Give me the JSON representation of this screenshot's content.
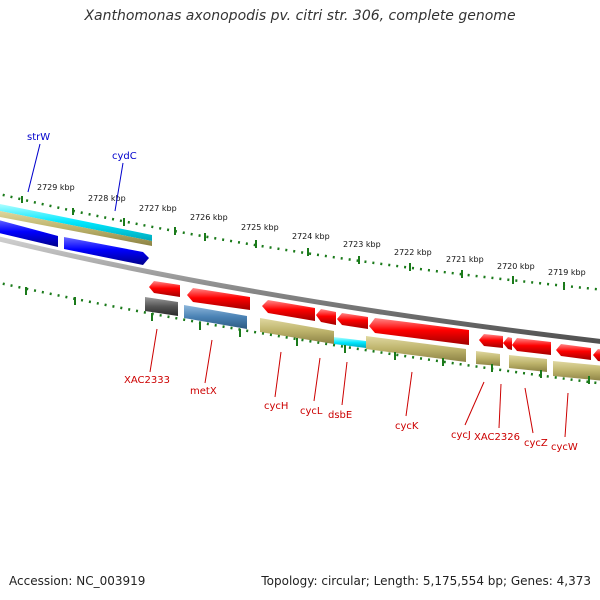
{
  "title": "Xanthomonas axonopodis pv. citri str. 306, complete genome",
  "accession": "Accession: NC_003919",
  "topology": "Topology: circular; Length: 5,175,554 bp; Genes: 4,373",
  "ruler": {
    "tick_labels": [
      "2729 kbp",
      "2728 kbp",
      "2727 kbp",
      "2726 kbp",
      "2725 kbp",
      "2724 kbp",
      "2723 kbp",
      "2722 kbp",
      "2721 kbp",
      "2720 kbp",
      "2719 kbp"
    ]
  },
  "colors": {
    "forward_gene": "#0000ff",
    "reverse_gene": "#ff0000",
    "highlight_gene": "#00e5ff",
    "cds_khaki": "#bdb36b",
    "pseudo_gray": "#555555",
    "steel_blue": "#4a82b4",
    "backbone": "#888888",
    "tick_green": "#1a7a1a"
  },
  "forward_labels": [
    {
      "name": "strW",
      "color": "#0000cc"
    },
    {
      "name": "cydC",
      "color": "#0000cc"
    }
  ],
  "reverse_labels": [
    {
      "name": "XAC2333",
      "color": "#cc0000"
    },
    {
      "name": "metX",
      "color": "#cc0000"
    },
    {
      "name": "cycH",
      "color": "#cc0000"
    },
    {
      "name": "cycL",
      "color": "#cc0000"
    },
    {
      "name": "dsbE",
      "color": "#cc0000"
    },
    {
      "name": "cycK",
      "color": "#cc0000"
    },
    {
      "name": "cycJ",
      "color": "#cc0000"
    },
    {
      "name": "XAC2326",
      "color": "#cc0000"
    },
    {
      "name": "cycZ",
      "color": "#cc0000"
    },
    {
      "name": "cycW",
      "color": "#cc0000"
    }
  ]
}
